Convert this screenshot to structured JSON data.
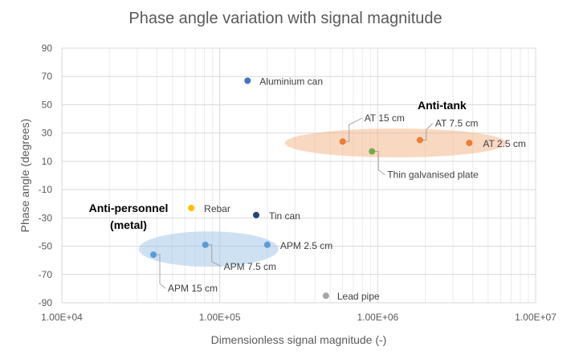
{
  "chart_data": {
    "type": "scatter",
    "title": "Phase angle variation with signal magnitude",
    "xlabel": "Dimensionless signal magnitude (-)",
    "ylabel": "Phase angle (degrees)",
    "x_scale": "log",
    "xlim": [
      10000,
      10000000
    ],
    "ylim": [
      -90,
      90
    ],
    "x_ticks": [
      "1.00E+04",
      "1.00E+05",
      "1.00E+06",
      "1.00E+07"
    ],
    "y_ticks": [
      "90",
      "70",
      "50",
      "30",
      "10",
      "-10",
      "-30",
      "-50",
      "-70",
      "-90"
    ],
    "grid": true,
    "points": [
      {
        "label": "Aluminium can",
        "x": 150000,
        "y": 67,
        "color": "#4472c4"
      },
      {
        "label": "AT 15 cm",
        "x": 600000,
        "y": 24,
        "color": "#ed7d31"
      },
      {
        "label": "AT 7.5 cm",
        "x": 1850000,
        "y": 25,
        "color": "#ed7d31"
      },
      {
        "label": "AT 2.5 cm",
        "x": 3800000,
        "y": 23,
        "color": "#ed7d31"
      },
      {
        "label": "Thin galvanised plate",
        "x": 920000,
        "y": 17,
        "color": "#70ad47"
      },
      {
        "label": "Rebar",
        "x": 66000,
        "y": -23,
        "color": "#ffc000"
      },
      {
        "label": "Tin can",
        "x": 170000,
        "y": -28,
        "color": "#264478"
      },
      {
        "label": "APM 2.5 cm",
        "x": 200000,
        "y": -49,
        "color": "#5b9bd5"
      },
      {
        "label": "APM 7.5 cm",
        "x": 81000,
        "y": -49,
        "color": "#5b9bd5"
      },
      {
        "label": "APM 15 cm",
        "x": 38000,
        "y": -56,
        "color": "#5b9bd5"
      },
      {
        "label": "Lead pipe",
        "x": 470000,
        "y": -85,
        "color": "#a5a5a5"
      }
    ],
    "groups": [
      {
        "label": "Anti-tank",
        "color": "#f4b183",
        "x_center": 1300000,
        "y_center": 23
      },
      {
        "label": "Anti-personnel (metal)",
        "color": "#9dc3e6",
        "x_center": 85000,
        "y_center": -52
      }
    ]
  }
}
